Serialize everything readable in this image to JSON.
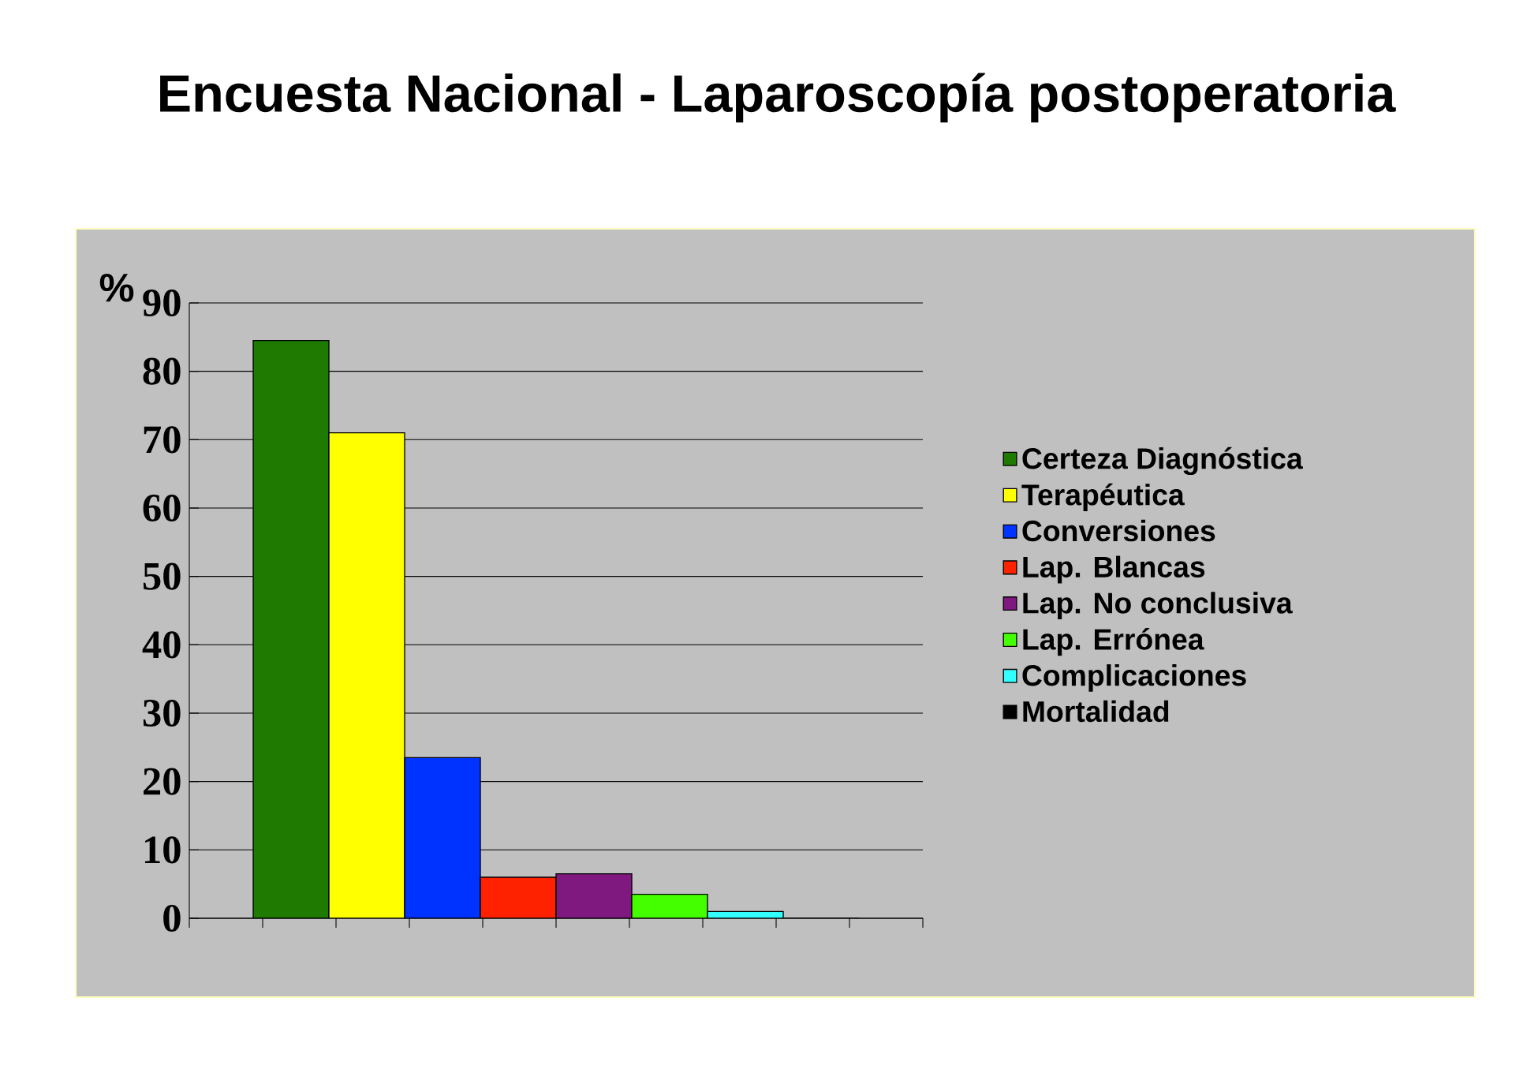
{
  "chart_data": {
    "type": "bar",
    "title": "Encuesta Nacional  - Laparoscopía postoperatoria",
    "ylabel": "%",
    "categories": [
      null
    ],
    "series": [
      {
        "name": "Certeza Diagnóstica",
        "color": "#1e7a00",
        "values": [
          84.5
        ]
      },
      {
        "name": "Terapéutica",
        "color": "#ffff00",
        "values": [
          71
        ]
      },
      {
        "name": "Conversiones",
        "color": "#0033ff",
        "values": [
          23.5
        ]
      },
      {
        "name": "Lap. Blancas",
        "color": "#ff2200",
        "values": [
          6
        ]
      },
      {
        "name": "Lap. No conclusiva",
        "color": "#7f187f",
        "values": [
          6.5
        ]
      },
      {
        "name": "Lap. Errónea",
        "color": "#44ff00",
        "values": [
          3.5
        ]
      },
      {
        "name": "Complicaciones",
        "color": "#33ffff",
        "values": [
          1
        ]
      },
      {
        "name": "Mortalidad",
        "color": "#000000",
        "values": [
          0
        ]
      }
    ],
    "ylim": [
      0,
      90
    ],
    "yticks": [
      0,
      10,
      20,
      30,
      40,
      50,
      60,
      70,
      80,
      90
    ],
    "grid": "y",
    "legend": "right"
  }
}
